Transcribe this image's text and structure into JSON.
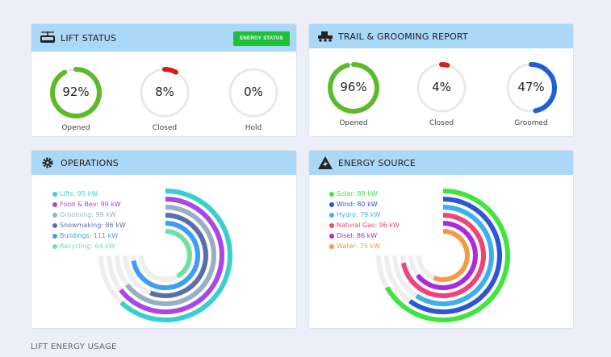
{
  "lift_status": {
    "title": "LIFT STATUS",
    "energy_button": "ENERGY STATUS",
    "gauges": [
      {
        "label": "Opened",
        "percent": 92,
        "text": "92%",
        "color": "#5dba2a"
      },
      {
        "label": "Closed",
        "percent": 8,
        "text": "8%",
        "color": "#d61c1c"
      },
      {
        "label": "Hold",
        "percent": 0,
        "text": "0%",
        "color": "#cccccc"
      }
    ]
  },
  "trail_report": {
    "title": "TRAIL & GROOMING REPORT",
    "gauges": [
      {
        "label": "Opened",
        "percent": 96,
        "text": "96%",
        "color": "#5dba2a"
      },
      {
        "label": "Closed",
        "percent": 4,
        "text": "4%",
        "color": "#d61c1c"
      },
      {
        "label": "Groomed",
        "percent": 47,
        "text": "47%",
        "color": "#1f5fd6"
      }
    ]
  },
  "operations": {
    "title": "OPERATIONS",
    "items": [
      {
        "label": "Lifts: 95 kW",
        "value": 95,
        "color": "#36d1cf"
      },
      {
        "label": "Food & Bev: 99 kW",
        "value": 99,
        "color": "#a946e6"
      },
      {
        "label": "Grooming: 99 kW",
        "value": 99,
        "color": "#98aec4"
      },
      {
        "label": "Snowmaking: 86 kW",
        "value": 86,
        "color": "#5a6fa8"
      },
      {
        "label": "Buildings: 111 kW",
        "value": 111,
        "color": "#3e9ef2"
      },
      {
        "label": "Recycling: 64 kW",
        "value": 64,
        "color": "#6ee29c"
      }
    ]
  },
  "energy_source": {
    "title": "ENERGY SOURCE",
    "items": [
      {
        "label": "Solar: 89 kW",
        "value": 89,
        "color": "#3fe53f"
      },
      {
        "label": "Wind: 80 kW",
        "value": 80,
        "color": "#2e55d8"
      },
      {
        "label": "Hydro: 79 kW",
        "value": 79,
        "color": "#3cb0ec"
      },
      {
        "label": "Natural Gas: 96 kW",
        "value": 96,
        "color": "#f0437a"
      },
      {
        "label": "Disel: 86 kW",
        "value": 86,
        "color": "#a92ae0"
      },
      {
        "label": "Water: 75 kW",
        "value": 75,
        "color": "#f59a44"
      }
    ]
  },
  "footer": {
    "label": "LIFT ENERGY USAGE"
  }
}
